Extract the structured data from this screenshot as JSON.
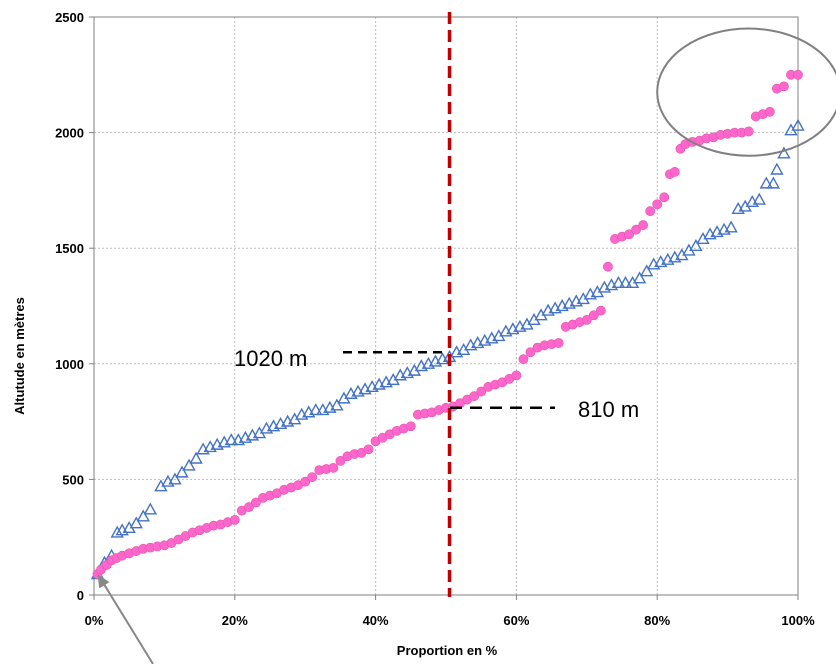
{
  "chart_data": {
    "type": "scatter",
    "xlabel": "Proportion en %",
    "ylabel": "Altutude en mètres",
    "xlim": [
      0,
      100
    ],
    "ylim": [
      0,
      2500
    ],
    "x_ticks": [
      "0%",
      "20%",
      "40%",
      "60%",
      "80%",
      "100%"
    ],
    "y_ticks": [
      "0",
      "500",
      "1000",
      "1500",
      "2000",
      "2500"
    ],
    "grid": true,
    "legend": "none",
    "vertical_line": {
      "x": 50.5,
      "color": "#C00000",
      "style": "dashed"
    },
    "annotations": [
      {
        "text": "1020 m",
        "x": 50.5,
        "y": 1050
      },
      {
        "text": "810 m",
        "x": 50.5,
        "y": 810
      }
    ],
    "highlight_ellipse": {
      "x_range": [
        80,
        106
      ],
      "y_range": [
        1900,
        2450
      ]
    },
    "arrow_to": {
      "x": 0.5,
      "y": 90
    },
    "series": [
      {
        "marker": "triangle",
        "color": "#4472C4",
        "points": [
          [
            0.5,
            90
          ],
          [
            1.5,
            140
          ],
          [
            2.5,
            170
          ],
          [
            3.3,
            270
          ],
          [
            4.0,
            280
          ],
          [
            5.0,
            290
          ],
          [
            6.0,
            310
          ],
          [
            7.0,
            340
          ],
          [
            8.0,
            370
          ],
          [
            9.5,
            470
          ],
          [
            10.5,
            490
          ],
          [
            11.5,
            500
          ],
          [
            12.5,
            530
          ],
          [
            13.5,
            560
          ],
          [
            14.5,
            590
          ],
          [
            15.5,
            630
          ],
          [
            16.5,
            640
          ],
          [
            17.5,
            650
          ],
          [
            18.5,
            660
          ],
          [
            19.5,
            670
          ],
          [
            20.5,
            670
          ],
          [
            21.5,
            680
          ],
          [
            22.5,
            690
          ],
          [
            23.5,
            700
          ],
          [
            24.5,
            720
          ],
          [
            25.5,
            730
          ],
          [
            26.5,
            740
          ],
          [
            27.5,
            750
          ],
          [
            28.5,
            760
          ],
          [
            29.5,
            780
          ],
          [
            30.5,
            790
          ],
          [
            31.5,
            800
          ],
          [
            32.5,
            800
          ],
          [
            33.5,
            810
          ],
          [
            34.5,
            820
          ],
          [
            35.5,
            850
          ],
          [
            36.5,
            870
          ],
          [
            37.5,
            880
          ],
          [
            38.5,
            890
          ],
          [
            39.5,
            900
          ],
          [
            40.5,
            910
          ],
          [
            41.5,
            920
          ],
          [
            42.5,
            930
          ],
          [
            43.5,
            950
          ],
          [
            44.5,
            960
          ],
          [
            45.5,
            970
          ],
          [
            46.5,
            990
          ],
          [
            47.5,
            1000
          ],
          [
            48.5,
            1010
          ],
          [
            49.5,
            1020
          ],
          [
            50.5,
            1030
          ],
          [
            51.5,
            1050
          ],
          [
            52.5,
            1060
          ],
          [
            53.5,
            1080
          ],
          [
            54.5,
            1090
          ],
          [
            55.5,
            1100
          ],
          [
            56.5,
            1110
          ],
          [
            57.5,
            1120
          ],
          [
            58.5,
            1140
          ],
          [
            59.5,
            1150
          ],
          [
            60.5,
            1160
          ],
          [
            61.5,
            1170
          ],
          [
            62.5,
            1190
          ],
          [
            63.5,
            1210
          ],
          [
            64.5,
            1230
          ],
          [
            65.5,
            1240
          ],
          [
            66.5,
            1250
          ],
          [
            67.5,
            1260
          ],
          [
            68.5,
            1270
          ],
          [
            69.5,
            1280
          ],
          [
            70.5,
            1300
          ],
          [
            71.5,
            1310
          ],
          [
            72.5,
            1330
          ],
          [
            73.5,
            1340
          ],
          [
            74.5,
            1350
          ],
          [
            75.5,
            1350
          ],
          [
            76.5,
            1350
          ],
          [
            77.5,
            1370
          ],
          [
            78.5,
            1400
          ],
          [
            79.5,
            1430
          ],
          [
            80.5,
            1440
          ],
          [
            81.5,
            1450
          ],
          [
            82.5,
            1460
          ],
          [
            83.5,
            1470
          ],
          [
            84.5,
            1490
          ],
          [
            85.5,
            1510
          ],
          [
            86.5,
            1540
          ],
          [
            87.5,
            1560
          ],
          [
            88.5,
            1570
          ],
          [
            89.5,
            1580
          ],
          [
            90.5,
            1590
          ],
          [
            91.5,
            1670
          ],
          [
            92.5,
            1680
          ],
          [
            93.5,
            1700
          ],
          [
            94.5,
            1710
          ],
          [
            95.5,
            1780
          ],
          [
            96.5,
            1780
          ],
          [
            97.0,
            1840
          ],
          [
            98.0,
            1910
          ],
          [
            99.0,
            2010
          ],
          [
            100.0,
            2030
          ]
        ]
      },
      {
        "marker": "circle",
        "color": "#FF66CC",
        "points": [
          [
            0.5,
            90
          ],
          [
            1.0,
            110
          ],
          [
            1.8,
            130
          ],
          [
            2.5,
            150
          ],
          [
            3.2,
            160
          ],
          [
            4.0,
            170
          ],
          [
            5.0,
            180
          ],
          [
            6.0,
            190
          ],
          [
            7.0,
            200
          ],
          [
            8.0,
            205
          ],
          [
            9.0,
            210
          ],
          [
            10.0,
            215
          ],
          [
            11.0,
            225
          ],
          [
            12.0,
            240
          ],
          [
            13.0,
            255
          ],
          [
            14.0,
            270
          ],
          [
            15.0,
            280
          ],
          [
            16.0,
            290
          ],
          [
            17.0,
            300
          ],
          [
            18.0,
            305
          ],
          [
            19.0,
            315
          ],
          [
            20.0,
            325
          ],
          [
            21.0,
            365
          ],
          [
            22.0,
            380
          ],
          [
            23.0,
            400
          ],
          [
            24.0,
            420
          ],
          [
            25.0,
            430
          ],
          [
            26.0,
            440
          ],
          [
            27.0,
            455
          ],
          [
            28.0,
            465
          ],
          [
            29.0,
            475
          ],
          [
            30.0,
            490
          ],
          [
            31.0,
            510
          ],
          [
            32.0,
            540
          ],
          [
            33.0,
            545
          ],
          [
            34.0,
            550
          ],
          [
            35.0,
            580
          ],
          [
            36.0,
            600
          ],
          [
            37.0,
            610
          ],
          [
            38.0,
            615
          ],
          [
            39.0,
            630
          ],
          [
            40.0,
            665
          ],
          [
            41.0,
            680
          ],
          [
            42.0,
            695
          ],
          [
            43.0,
            710
          ],
          [
            44.0,
            720
          ],
          [
            45.0,
            730
          ],
          [
            46.0,
            780
          ],
          [
            47.0,
            785
          ],
          [
            48.0,
            790
          ],
          [
            49.0,
            800
          ],
          [
            50.0,
            810
          ],
          [
            51.0,
            815
          ],
          [
            52.0,
            830
          ],
          [
            53.0,
            845
          ],
          [
            54.0,
            860
          ],
          [
            55.0,
            880
          ],
          [
            56.0,
            900
          ],
          [
            57.0,
            910
          ],
          [
            58.0,
            920
          ],
          [
            59.0,
            935
          ],
          [
            60.0,
            950
          ],
          [
            61.0,
            1020
          ],
          [
            62.0,
            1050
          ],
          [
            63.0,
            1070
          ],
          [
            64.0,
            1080
          ],
          [
            65.0,
            1085
          ],
          [
            66.0,
            1090
          ],
          [
            67.0,
            1160
          ],
          [
            68.0,
            1170
          ],
          [
            69.0,
            1180
          ],
          [
            70.0,
            1190
          ],
          [
            71.0,
            1210
          ],
          [
            72.0,
            1230
          ],
          [
            73.0,
            1420
          ],
          [
            74.0,
            1540
          ],
          [
            75.0,
            1550
          ],
          [
            76.0,
            1560
          ],
          [
            77.0,
            1580
          ],
          [
            78.0,
            1600
          ],
          [
            79.0,
            1660
          ],
          [
            80.0,
            1690
          ],
          [
            81.0,
            1720
          ],
          [
            81.8,
            1820
          ],
          [
            82.5,
            1830
          ],
          [
            83.3,
            1930
          ],
          [
            84.0,
            1950
          ],
          [
            85.0,
            1960
          ],
          [
            86.0,
            1965
          ],
          [
            87.0,
            1975
          ],
          [
            88.0,
            1980
          ],
          [
            89.0,
            1990
          ],
          [
            90.0,
            1995
          ],
          [
            91.0,
            2000
          ],
          [
            92.0,
            2000
          ],
          [
            93.0,
            2005
          ],
          [
            94.0,
            2070
          ],
          [
            95.0,
            2080
          ],
          [
            96.0,
            2090
          ],
          [
            97.0,
            2190
          ],
          [
            98.0,
            2200
          ],
          [
            99.0,
            2250
          ],
          [
            100.0,
            2250
          ]
        ]
      }
    ]
  }
}
